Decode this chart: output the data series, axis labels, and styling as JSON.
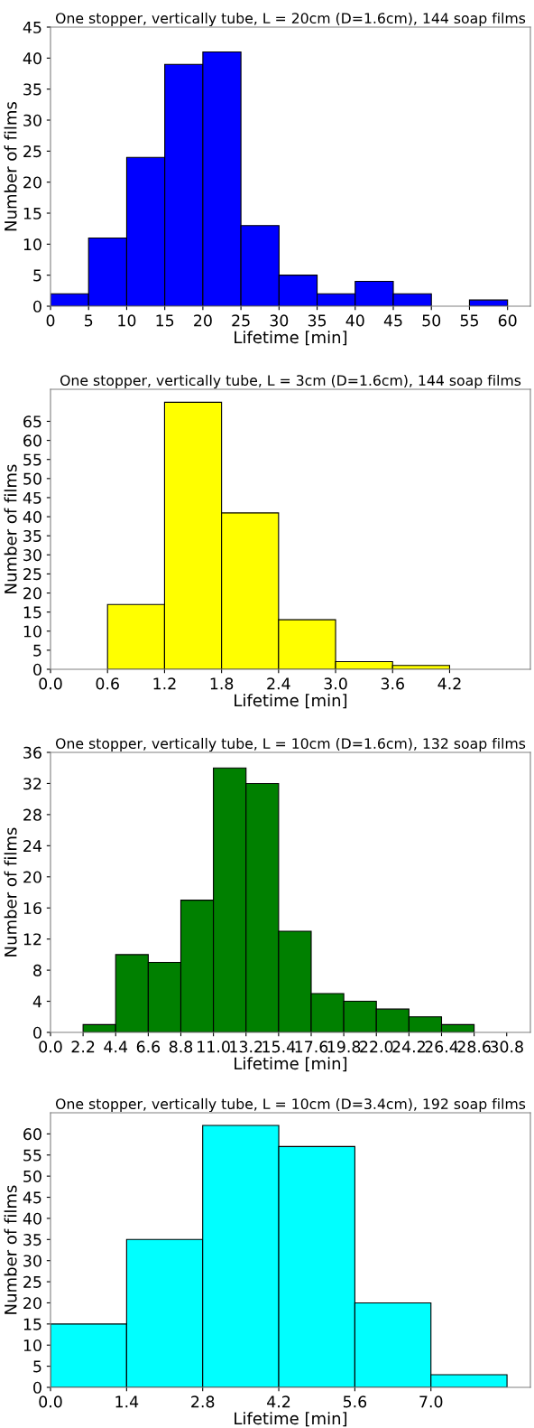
{
  "chart_data": [
    {
      "type": "histogram",
      "title": "One stopper, vertically tube, L = 20cm (D=1.6cm), 144 soap films",
      "xlabel": "Lifetime [min]",
      "ylabel": "Number of films",
      "color": "#0000ff",
      "bins": [
        0,
        5,
        10,
        15,
        20,
        25,
        30,
        35,
        40,
        45,
        50,
        55,
        60
      ],
      "values": [
        2,
        11,
        24,
        39,
        41,
        13,
        5,
        2,
        4,
        2,
        0,
        1
      ],
      "xlim": [
        0,
        63
      ],
      "xticks": [
        0,
        5,
        10,
        15,
        20,
        25,
        30,
        35,
        40,
        45,
        50,
        55,
        60
      ],
      "ylim": [
        0,
        45
      ],
      "yticks": [
        0,
        5,
        10,
        15,
        20,
        25,
        30,
        35,
        40,
        45
      ]
    },
    {
      "type": "histogram",
      "title": "One stopper, vertically tube, L = 3cm (D=1.6cm), 144 soap films",
      "xlabel": "Lifetime [min]",
      "ylabel": "Number of films",
      "color": "#ffff00",
      "bins": [
        0.6,
        1.2,
        1.8,
        2.4,
        3.0,
        3.6,
        4.2
      ],
      "values": [
        17,
        70,
        41,
        13,
        2,
        1
      ],
      "xlim": [
        0,
        5.05
      ],
      "xticks": [
        {
          "value": 0,
          "label": "0.0"
        },
        0.6,
        1.2,
        1.8,
        2.4,
        {
          "value": 3,
          "label": "3.0"
        },
        3.6,
        4.2
      ],
      "ylim": [
        0,
        73.4
      ],
      "yticks": [
        0,
        5,
        10,
        15,
        20,
        25,
        30,
        35,
        40,
        45,
        50,
        55,
        60,
        65
      ]
    },
    {
      "type": "histogram",
      "title": "One stopper, vertically tube, L = 10cm (D=1.6cm), 132 soap films",
      "xlabel": "Lifetime [min]",
      "ylabel": "Number of films",
      "color": "#008000",
      "bins": [
        2.2,
        4.4,
        6.6,
        8.8,
        11.0,
        13.2,
        15.4,
        17.6,
        19.8,
        22.0,
        24.2,
        26.4,
        28.6
      ],
      "values": [
        1,
        10,
        9,
        17,
        34,
        32,
        13,
        5,
        4,
        3,
        2,
        1
      ],
      "xlim": [
        0,
        32.4
      ],
      "xticks": [
        {
          "value": 0,
          "label": "0.0"
        },
        2.2,
        4.4,
        6.6,
        8.8,
        {
          "value": 11,
          "label": "11.0"
        },
        13.2,
        15.4,
        17.6,
        19.8,
        {
          "value": 22,
          "label": "22.0"
        },
        24.2,
        26.4,
        28.6,
        30.8
      ],
      "ylim": [
        0,
        36
      ],
      "yticks": [
        0,
        4,
        8,
        12,
        16,
        20,
        24,
        28,
        32,
        36
      ]
    },
    {
      "type": "histogram",
      "title": "One stopper, vertically tube, L = 10cm (D=3.4cm), 192 soap films",
      "xlabel": "Lifetime [min]",
      "ylabel": "Number of films",
      "color": "#00ffff",
      "bins": [
        0,
        1.4,
        2.8,
        4.2,
        5.6,
        7.0,
        8.4
      ],
      "values": [
        15,
        35,
        62,
        57,
        20,
        3
      ],
      "xlim": [
        0,
        8.83
      ],
      "xticks": [
        {
          "value": 0,
          "label": "0.0"
        },
        1.4,
        2.8,
        4.2,
        5.6,
        {
          "value": 7,
          "label": "7.0"
        }
      ],
      "ylim": [
        0,
        65
      ],
      "yticks": [
        0,
        5,
        10,
        15,
        20,
        25,
        30,
        35,
        40,
        45,
        50,
        55,
        60
      ]
    }
  ]
}
